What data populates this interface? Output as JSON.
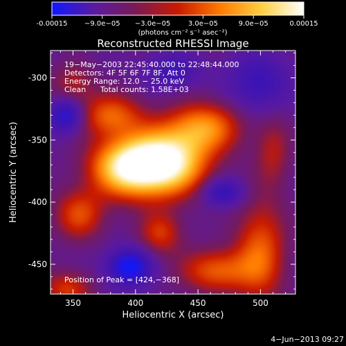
{
  "colorbar": {
    "tick_labels": [
      "-0.00015",
      "−9.0e−05",
      "−3.0e−05",
      "3.0e−05",
      "9.0e−05",
      "0.00015"
    ],
    "tick_values": [
      -0.00015,
      -9e-05,
      -3e-05,
      3e-05,
      9e-05,
      0.00015
    ],
    "range": [
      -0.00015,
      0.00015
    ],
    "unit_label": "(photons cm⁻² s⁻¹ asec⁻²)",
    "gradient_colors": [
      "#1018ff",
      "#5a1aa0",
      "#7a1a55",
      "#c81a00",
      "#ff7a00",
      "#ffd040",
      "#ffffff"
    ]
  },
  "header": {
    "time_range": "19−May−2003 22:45:40.000 to 22:48:44.000",
    "detectors": "Detectors: 4F 5F 6F 7F 8F, Att 0",
    "energy": "Energy Range: 12.0 − 25.0 keV",
    "clean_label": "Clean",
    "total_counts": "Total counts: 1.58E+03",
    "peak_position": "Position of Peak = [424,−368]",
    "footer_date": "4−Jun−2013 09:27"
  },
  "chart_data": {
    "type": "heatmap",
    "title": "Reconstructed RHESSI Image",
    "xlabel": "Heliocentric X (arcsec)",
    "ylabel": "Heliocentric Y (arcsec)",
    "xlim": [
      332,
      528
    ],
    "ylim": [
      -474,
      -278
    ],
    "xticks": [
      350,
      400,
      450,
      500
    ],
    "yticks": [
      -300,
      -350,
      -400,
      -450
    ],
    "colormap": "blue-purple-red-yellow-white",
    "value_range": [
      -0.00015,
      0.00015
    ],
    "peak": {
      "x": 424,
      "y": -368
    },
    "features": [
      {
        "x": 424,
        "y": -368,
        "sx": 22,
        "sy": 18,
        "amp": 1.0
      },
      {
        "x": 392,
        "y": -372,
        "sx": 20,
        "sy": 16,
        "amp": 0.8
      },
      {
        "x": 455,
        "y": -340,
        "sx": 20,
        "sy": 14,
        "amp": 0.55
      },
      {
        "x": 380,
        "y": -330,
        "sx": 18,
        "sy": 12,
        "amp": 0.45
      },
      {
        "x": 355,
        "y": -410,
        "sx": 14,
        "sy": 14,
        "amp": 0.4
      },
      {
        "x": 500,
        "y": -440,
        "sx": 14,
        "sy": 28,
        "amp": 0.45
      },
      {
        "x": 465,
        "y": -455,
        "sx": 20,
        "sy": 12,
        "amp": 0.45
      },
      {
        "x": 420,
        "y": -425,
        "sx": 12,
        "sy": 12,
        "amp": 0.35
      },
      {
        "x": 345,
        "y": -470,
        "sx": 14,
        "sy": 10,
        "amp": 0.35
      },
      {
        "x": 345,
        "y": -330,
        "sx": 10,
        "sy": 10,
        "amp": -0.45
      },
      {
        "x": 395,
        "y": -452,
        "sx": 12,
        "sy": 10,
        "amp": -0.55
      },
      {
        "x": 470,
        "y": -392,
        "sx": 12,
        "sy": 8,
        "amp": -0.35
      },
      {
        "x": 498,
        "y": -304,
        "sx": 16,
        "sy": 16,
        "amp": -0.3
      },
      {
        "x": 430,
        "y": -295,
        "sx": 14,
        "sy": 10,
        "amp": -0.25
      },
      {
        "x": 350,
        "y": -305,
        "sx": 12,
        "sy": 12,
        "amp": 0.25
      },
      {
        "x": 510,
        "y": -360,
        "sx": 10,
        "sy": 20,
        "amp": 0.25
      }
    ]
  }
}
